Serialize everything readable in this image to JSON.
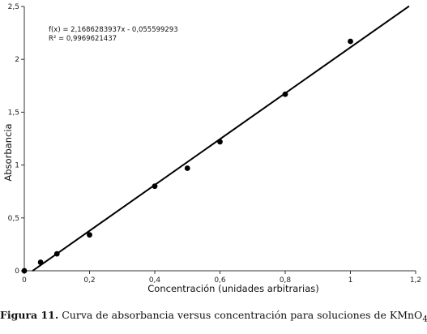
{
  "chart_data": {
    "type": "scatter",
    "xlabel": "Concentración (unidades arbitrarias)",
    "ylabel": "Absorbancia",
    "xlim": [
      0,
      1.2
    ],
    "ylim": [
      0,
      2.5
    ],
    "x_ticks": [
      "0",
      "0,2",
      "0,4",
      "0,6",
      "0,8",
      "1",
      "1,2"
    ],
    "y_ticks": [
      "0",
      "0,5",
      "1",
      "1,5",
      "2",
      "2,5"
    ],
    "grid": false,
    "legend": "none",
    "series": [
      {
        "x": [
          0,
          0.05,
          0.1,
          0.2,
          0.4,
          0.5,
          0.6,
          0.8,
          1.0
        ],
        "y": [
          0.0,
          0.08,
          0.16,
          0.34,
          0.8,
          0.97,
          1.22,
          1.67,
          2.17
        ]
      }
    ],
    "trendline": {
      "slope": 2.1686283937,
      "intercept": -0.055599293,
      "x_range": [
        0.025,
        1.18
      ],
      "equation": "f(x) = 2,1686283937x - 0,055599293",
      "r_squared": "R² = 0,9969621437"
    },
    "colors": {
      "points": "#000000",
      "line": "#000000",
      "axes": "#333333"
    }
  },
  "caption": {
    "label": "Figura 11.",
    "text": " Curva de absorbancia versus concentración para soluciones de KMnO",
    "subscript": "4",
    "end": "."
  }
}
